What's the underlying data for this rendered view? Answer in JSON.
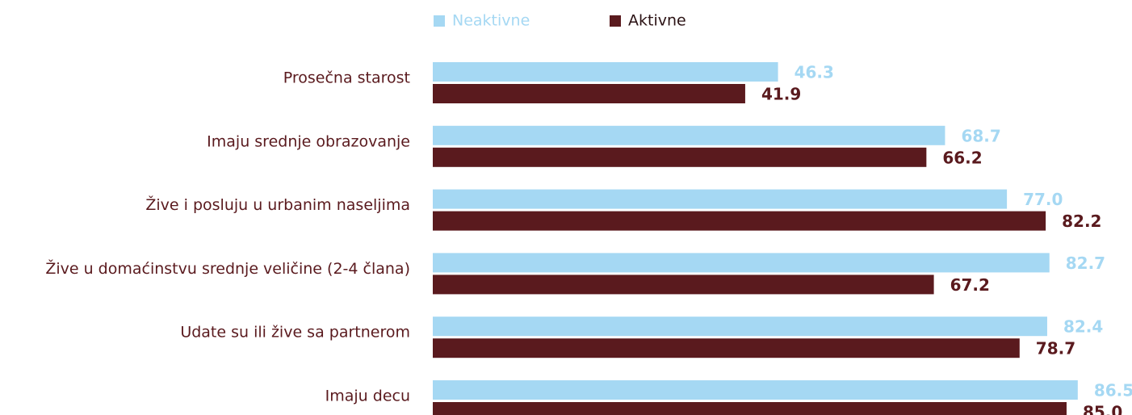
{
  "chart_data": {
    "type": "bar",
    "orientation": "horizontal",
    "categories": [
      "Prosečna starost",
      "Imaju srednje obrazovanje",
      "Žive i posluju u urbanim naseljima",
      "Žive u domaćinstvu srednje veličine (2-4 člana)",
      "Udate su ili žive sa partnerom",
      "Imaju decu"
    ],
    "series": [
      {
        "name": "Neaktivne",
        "color": "#a5d8f3",
        "values": [
          46.3,
          68.7,
          77.0,
          82.7,
          82.4,
          86.5
        ],
        "value_labels": [
          "46.3",
          "68.7",
          "77.0",
          "82.7",
          "82.4",
          "86.5"
        ]
      },
      {
        "name": "Aktivne",
        "color": "#5a1a1e",
        "values": [
          41.9,
          66.2,
          82.2,
          67.2,
          78.7,
          85.0
        ],
        "value_labels": [
          "41.9",
          "66.2",
          "82.2",
          "67.2",
          "78.7",
          "85.0"
        ]
      }
    ],
    "legend": "top"
  }
}
